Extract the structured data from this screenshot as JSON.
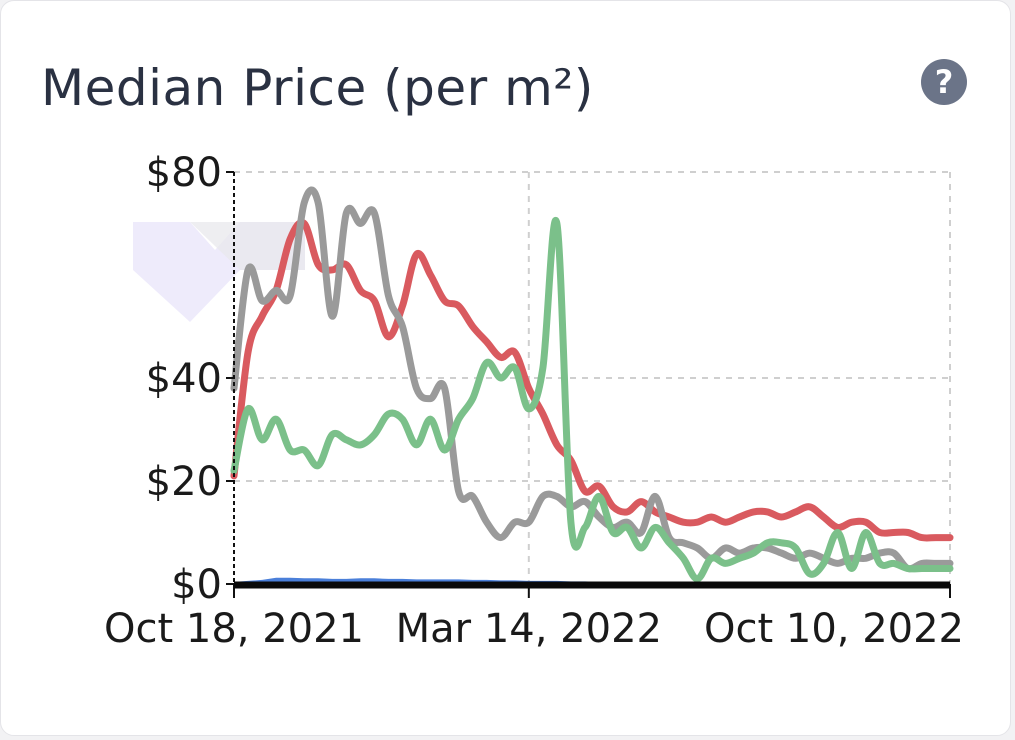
{
  "card": {
    "title": "Median Price (per m²)",
    "help_icon": "question-circle-icon",
    "help_symbol": "?"
  },
  "chart_data": {
    "type": "line",
    "title": "Median Price (per m²)",
    "xlabel": "",
    "ylabel": "",
    "x_ticks": [
      {
        "label": "Oct 18, 2021",
        "week": 0
      },
      {
        "label": "Mar 14, 2022",
        "week": 21
      },
      {
        "label": "Oct 10, 2022",
        "week": 51
      }
    ],
    "y_ticks": [
      {
        "label": "$0",
        "value": 0
      },
      {
        "label": "$20",
        "value": 20
      },
      {
        "label": "$40",
        "value": 40
      },
      {
        "label": "$80",
        "value": 80
      }
    ],
    "ylim": [
      0,
      80
    ],
    "xlim_weeks": [
      0,
      51
    ],
    "grid": true,
    "series": [
      {
        "color": "#d95a5f",
        "x": [
          0,
          1,
          2,
          3,
          4,
          5,
          6,
          7,
          8,
          9,
          10,
          11,
          12,
          13,
          14,
          15,
          16,
          17,
          18,
          19,
          20,
          21,
          22,
          23,
          24,
          25,
          26,
          27,
          28,
          29,
          30,
          31,
          32,
          33,
          34,
          35,
          36,
          37,
          38,
          39,
          40,
          41,
          42,
          43,
          44,
          45,
          46,
          47,
          48,
          49,
          50,
          51
        ],
        "y": [
          21,
          45,
          52,
          57,
          67,
          70,
          62,
          61,
          62,
          57,
          55,
          48,
          54,
          64,
          60,
          55,
          54,
          50,
          47,
          44,
          45,
          38,
          33,
          27,
          24,
          18,
          19,
          15,
          14,
          16,
          14,
          13,
          12,
          12,
          13,
          12,
          13,
          14,
          14,
          13,
          14,
          15,
          13,
          11,
          12,
          12,
          10,
          10,
          10,
          9,
          9,
          9
        ]
      },
      {
        "color": "#9a9a9a",
        "x": [
          0,
          1,
          2,
          3,
          4,
          5,
          6,
          7,
          8,
          9,
          10,
          11,
          12,
          13,
          14,
          15,
          16,
          17,
          18,
          19,
          20,
          21,
          22,
          23,
          24,
          25,
          26,
          27,
          28,
          29,
          30,
          31,
          32,
          33,
          34,
          35,
          36,
          37,
          38,
          39,
          40,
          41,
          42,
          43,
          44,
          45,
          46,
          47,
          48,
          49,
          50,
          51
        ],
        "y": [
          38,
          61,
          55,
          57,
          56,
          74,
          74,
          52,
          72,
          70,
          72,
          56,
          50,
          38,
          36,
          38,
          18,
          17,
          12,
          9,
          12,
          12,
          17,
          17,
          15,
          16,
          13,
          11,
          12,
          10,
          17,
          9,
          8,
          7,
          5,
          7,
          6,
          7,
          7,
          6,
          5,
          6,
          5,
          4,
          5,
          5,
          6,
          6,
          3,
          4,
          4,
          4
        ]
      },
      {
        "color": "#7bc08a",
        "x": [
          0,
          1,
          2,
          3,
          4,
          5,
          6,
          7,
          8,
          9,
          10,
          11,
          12,
          13,
          14,
          15,
          16,
          17,
          18,
          19,
          20,
          21,
          22,
          23,
          24,
          25,
          26,
          27,
          28,
          29,
          30,
          31,
          32,
          33,
          34,
          35,
          36,
          37,
          38,
          39,
          40,
          41,
          42,
          43,
          44,
          45,
          46,
          47,
          48,
          49,
          50,
          51
        ],
        "y": [
          22,
          34,
          28,
          32,
          26,
          26,
          23,
          29,
          28,
          27,
          29,
          33,
          32,
          27,
          32,
          26,
          32,
          36,
          43,
          40,
          42,
          34,
          42,
          70,
          12,
          11,
          17,
          10,
          11,
          7,
          11,
          8,
          5,
          1,
          5,
          4,
          5,
          6,
          8,
          8,
          7,
          2,
          4,
          10,
          3,
          10,
          4,
          4,
          3,
          3,
          3,
          3
        ]
      },
      {
        "color": "#4a7fd9",
        "x": [
          0,
          1,
          2,
          3,
          4,
          5,
          6,
          7,
          8,
          9,
          10,
          11,
          12,
          13,
          14,
          15,
          16,
          17,
          18,
          19,
          20,
          21,
          22,
          23,
          24,
          25,
          26,
          27,
          28,
          29,
          30,
          31,
          32,
          33,
          34,
          35,
          36,
          37,
          38,
          39,
          40,
          41,
          42,
          43,
          44,
          45,
          46,
          47,
          48,
          49,
          50,
          51
        ],
        "y": [
          0.4,
          0.6,
          0.8,
          1.2,
          1.2,
          1.1,
          1.1,
          1.0,
          1.0,
          1.1,
          1.1,
          1.0,
          1.0,
          0.9,
          0.9,
          0.9,
          0.9,
          0.8,
          0.8,
          0.7,
          0.7,
          0.6,
          0.6,
          0.6,
          0.5,
          0.5,
          0.4,
          0.4,
          0.4,
          0.4,
          0.3,
          0.3,
          0.3,
          0.3,
          0.3,
          0.3,
          0.2,
          0.2,
          0.2,
          0.2,
          0.2,
          0.2,
          0.2,
          0.2,
          0.2,
          0.2,
          0.2,
          0.2,
          0.2,
          0.2,
          0.2,
          0.2
        ]
      }
    ]
  }
}
